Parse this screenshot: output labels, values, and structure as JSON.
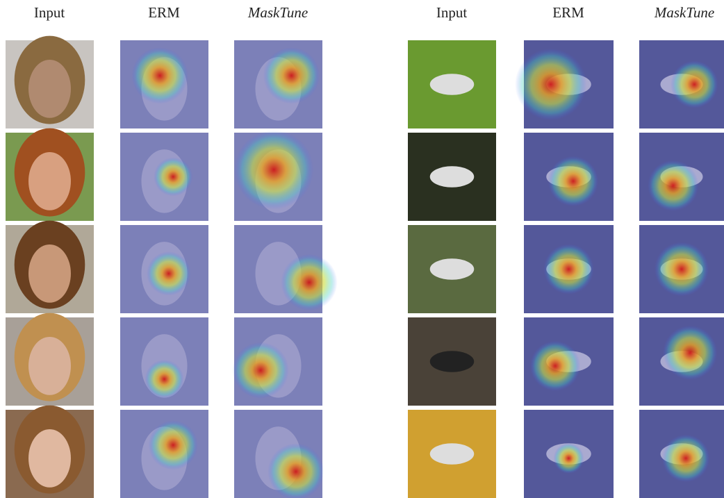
{
  "columns": [
    "Input",
    "ERM",
    "MaskTune",
    "Input",
    "ERM",
    "MaskTune"
  ]
}
